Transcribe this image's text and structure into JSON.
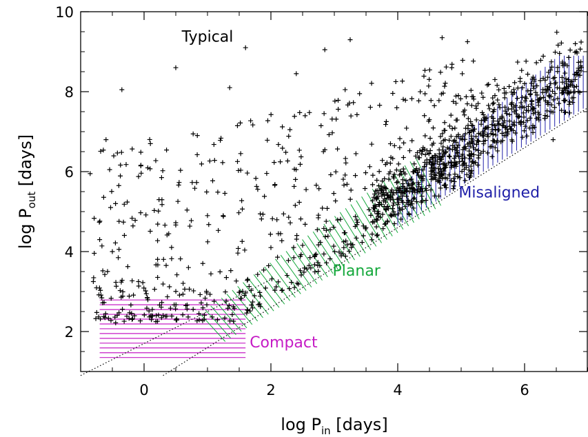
{
  "chart_data": {
    "type": "scatter",
    "xlim": [
      -1,
      7
    ],
    "ylim": [
      1,
      10
    ],
    "x_ticks": [
      0,
      2,
      4,
      6
    ],
    "y_ticks": [
      2,
      4,
      6,
      8,
      10
    ],
    "x_tick_labels": [
      "0",
      "2",
      "4",
      "6"
    ],
    "y_tick_labels": [
      "2",
      "4",
      "6",
      "8",
      "10"
    ],
    "xlabel": {
      "pre": "log P",
      "sub": "in",
      "post": " [days]"
    },
    "ylabel": {
      "pre": "log P",
      "sub": "out",
      "post": " [days]"
    },
    "grid": false,
    "marker": "+",
    "colors": {
      "points": "#000000",
      "typical": "#000000",
      "compact": "#c51bc5",
      "planar": "#14a83b",
      "misaligned": "#1f1fa8",
      "boundary": "#000000"
    },
    "boundary_lines": [
      {
        "x": [
          -1,
          2
        ],
        "y": [
          0.9,
          3.3
        ]
      },
      {
        "x": [
          0.3,
          7
        ],
        "y": [
          0.9,
          7.6
        ]
      }
    ],
    "regions": [
      {
        "name": "Typical",
        "label_at": [
          1.0,
          9.25
        ]
      },
      {
        "name": "Compact",
        "label_at": [
          2.2,
          1.6
        ],
        "hatch": "horizontal",
        "x_range": [
          -0.7,
          1.6
        ],
        "y_range": [
          1.35,
          2.85
        ]
      },
      {
        "name": "Planar",
        "label_at": [
          3.35,
          3.4
        ],
        "hatch": "diagonal",
        "x_range": [
          1.1,
          4.5
        ],
        "y_range": [
          2.5,
          6.0
        ]
      },
      {
        "name": "Misaligned",
        "label_at": [
          5.6,
          5.35
        ],
        "hatch": "vertical",
        "x_range": [
          4.0,
          7.0
        ],
        "y_range": [
          5.0,
          8.9
        ]
      }
    ],
    "points": {
      "count": 1300,
      "sample": [
        [
          -1.0,
          3.7
        ],
        [
          -0.85,
          5.95
        ],
        [
          -0.8,
          3.25
        ],
        [
          -0.7,
          4.3
        ],
        [
          -0.6,
          6.8
        ],
        [
          -0.5,
          4.0
        ],
        [
          -0.45,
          5.2
        ],
        [
          -0.35,
          8.05
        ],
        [
          0.05,
          2.85
        ],
        [
          0.1,
          6.7
        ],
        [
          0.3,
          2.4
        ],
        [
          0.5,
          8.6
        ],
        [
          0.7,
          3.6
        ],
        [
          1.0,
          4.9
        ],
        [
          1.35,
          8.1
        ],
        [
          1.6,
          9.1
        ],
        [
          2.0,
          4.1
        ],
        [
          2.4,
          8.45
        ],
        [
          2.85,
          9.05
        ],
        [
          3.25,
          9.3
        ],
        [
          3.5,
          4.6
        ],
        [
          4.0,
          5.6
        ],
        [
          4.4,
          6.6
        ],
        [
          4.7,
          9.35
        ],
        [
          5.1,
          9.25
        ],
        [
          5.5,
          7.5
        ],
        [
          6.0,
          8.2
        ],
        [
          6.45,
          6.8
        ],
        [
          6.6,
          8.7
        ],
        [
          6.8,
          9.2
        ]
      ]
    }
  }
}
